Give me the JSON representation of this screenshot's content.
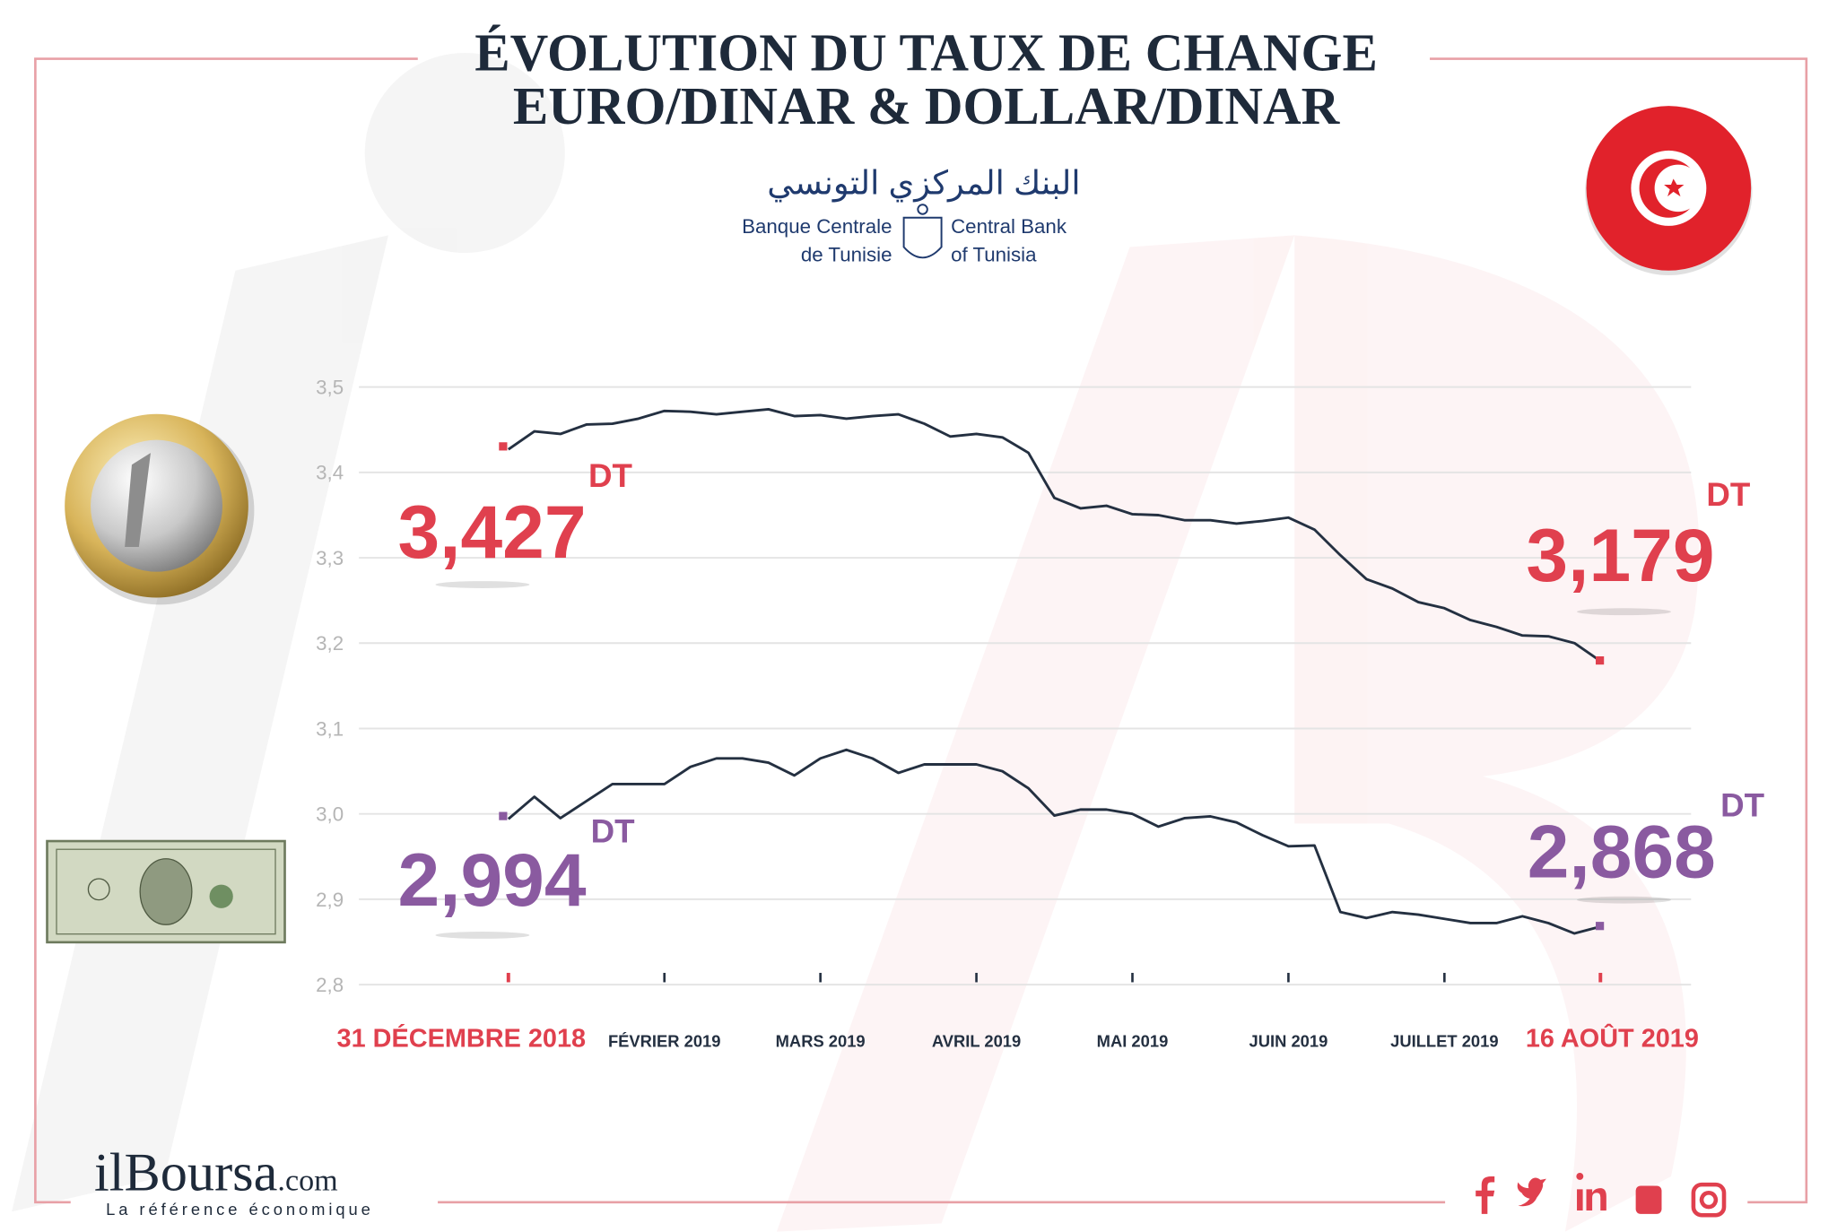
{
  "chart_data": {
    "type": "line",
    "title": "ÉVOLUTION DU TAUX DE CHANGE",
    "subtitle": "EURO/DINAR & DOLLAR/DINAR",
    "unit": "DT",
    "categories": [
      "31 DÉCEMBRE 2018",
      null,
      null,
      null,
      null,
      null,
      "FÉVRIER 2019",
      null,
      null,
      null,
      null,
      null,
      "MARS 2019",
      null,
      null,
      null,
      null,
      null,
      "AVRIL 2019",
      null,
      null,
      null,
      null,
      null,
      "MAI 2019",
      null,
      null,
      null,
      null,
      null,
      "JUIN 2019",
      null,
      null,
      null,
      null,
      null,
      "JUILLET 2019",
      null,
      null,
      null,
      null,
      null,
      "16 AOÛT 2019"
    ],
    "series": [
      {
        "color": "#243041",
        "label_color": "#e0404e",
        "values": [
          3.427,
          3.448,
          3.445,
          3.456,
          3.457,
          3.463,
          3.472,
          3.471,
          3.468,
          3.471,
          3.474,
          3.466,
          3.467,
          3.463,
          3.466,
          3.468,
          3.457,
          3.442,
          3.445,
          3.441,
          3.423,
          3.37,
          3.358,
          3.361,
          3.351,
          3.35,
          3.344,
          3.344,
          3.34,
          3.343,
          3.347,
          3.333,
          3.303,
          3.275,
          3.264,
          3.248,
          3.241,
          3.227,
          3.219,
          3.209,
          3.208,
          3.2,
          3.179
        ],
        "value_labels": [
          "3,427",
          null,
          null,
          null,
          null,
          null,
          null,
          null,
          null,
          null,
          null,
          null,
          null,
          null,
          null,
          null,
          null,
          null,
          null,
          null,
          null,
          null,
          null,
          null,
          null,
          null,
          null,
          null,
          null,
          null,
          null,
          null,
          null,
          null,
          null,
          null,
          null,
          null,
          null,
          null,
          null,
          null,
          "3,179"
        ]
      },
      {
        "color": "#243041",
        "label_color": "#8a5aa0",
        "values": [
          2.994,
          3.02,
          2.995,
          3.015,
          3.035,
          3.035,
          3.035,
          3.055,
          3.065,
          3.065,
          3.06,
          3.045,
          3.065,
          3.075,
          3.065,
          3.048,
          3.058,
          3.058,
          3.058,
          3.05,
          3.03,
          2.998,
          3.005,
          3.005,
          3.0,
          2.985,
          2.995,
          2.997,
          2.99,
          2.975,
          2.962,
          2.963,
          2.885,
          2.878,
          2.885,
          2.882,
          2.877,
          2.872,
          2.872,
          2.88,
          2.872,
          2.86,
          2.868
        ],
        "value_labels": [
          "2,994",
          null,
          null,
          null,
          null,
          null,
          null,
          null,
          null,
          null,
          null,
          null,
          null,
          null,
          null,
          null,
          null,
          null,
          null,
          null,
          null,
          null,
          null,
          null,
          null,
          null,
          null,
          null,
          null,
          null,
          null,
          null,
          null,
          null,
          null,
          null,
          null,
          null,
          null,
          null,
          null,
          null,
          "2,868"
        ]
      }
    ],
    "ylim": [
      2.8,
      3.5
    ],
    "yticks": [
      {
        "value": 2.8,
        "label": "2,8"
      },
      {
        "value": 2.9,
        "label": "2,9"
      },
      {
        "value": 3.0,
        "label": "3,0"
      },
      {
        "value": 3.1,
        "label": "3,1"
      },
      {
        "value": 3.2,
        "label": "3,2"
      },
      {
        "value": 3.3,
        "label": "3,3"
      },
      {
        "value": 3.4,
        "label": "3,4"
      },
      {
        "value": 3.5,
        "label": "3,5"
      }
    ],
    "grid": true
  },
  "bank": {
    "arabic": "البنك المركزي التونسي",
    "fr_line1": "Banque Centrale",
    "fr_line2": "de Tunisie",
    "en_line1": "Central Bank",
    "en_line2": "of Tunisia"
  },
  "footer": {
    "brand": "ilBoursa",
    "domain": ".com",
    "tagline": "La référence économique"
  }
}
